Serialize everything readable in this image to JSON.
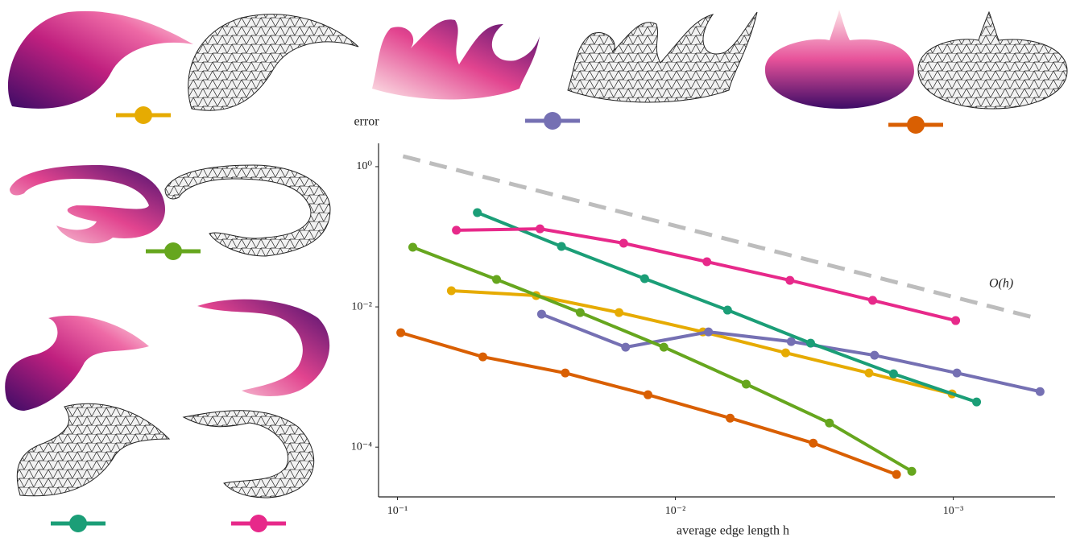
{
  "chart_data": {
    "type": "line",
    "y_label": "error",
    "x_label": "average edge length h",
    "annotation": "O(h)",
    "xlog": true,
    "ylog": true,
    "xlim": [
      0.117,
      0.00043
    ],
    "ylim": [
      2.15,
      1.95e-05
    ],
    "xticks": [
      {
        "value": 0.1,
        "label": "10⁻¹"
      },
      {
        "value": 0.01,
        "label": "10⁻²"
      },
      {
        "value": 0.001,
        "label": "10⁻³"
      }
    ],
    "yticks": [
      {
        "value": 1,
        "label": "10⁰"
      },
      {
        "value": 0.01,
        "label": "10⁻²"
      },
      {
        "value": 0.0001,
        "label": "10⁻⁴"
      }
    ],
    "reference": {
      "color": "#bdbdbd",
      "x": [
        0.0955,
        0.00049
      ],
      "values": [
        1.41,
        0.00673
      ]
    },
    "series": [
      {
        "color": "#e6ab02",
        "x": [
          0.064,
          0.0317,
          0.01595,
          0.00796,
          0.00401,
          0.00201,
          0.00101
        ],
        "values": [
          0.017,
          0.0145,
          0.0083,
          0.0044,
          0.00221,
          0.00114,
          0.000574
        ]
      },
      {
        "color": "#7570b3",
        "x": [
          0.0303,
          0.0151,
          0.0076,
          0.00383,
          0.00192,
          0.00097,
          0.000487
        ],
        "values": [
          0.00788,
          0.00266,
          0.0044,
          0.0032,
          0.00204,
          0.00114,
          0.00062
        ]
      },
      {
        "color": "#d95f02",
        "x": [
          0.0973,
          0.0493,
          0.0249,
          0.01255,
          0.00635,
          0.00319,
          0.0016
        ],
        "values": [
          0.00429,
          0.00194,
          0.00114,
          0.000558,
          0.000259,
          0.000114,
          4.07e-05
        ]
      },
      {
        "color": "#66a61e",
        "x": [
          0.0881,
          0.044,
          0.022,
          0.011,
          0.00556,
          0.00279,
          0.00141
        ],
        "values": [
          0.071,
          0.0246,
          0.0083,
          0.00266,
          0.00079,
          0.000221,
          4.52e-05
        ]
      },
      {
        "color": "#1b9e77",
        "x": [
          0.0516,
          0.0257,
          0.0129,
          0.00649,
          0.00326,
          0.00164,
          0.000824
        ],
        "values": [
          0.221,
          0.0728,
          0.0253,
          0.009,
          0.00304,
          0.00111,
          0.00044
        ]
      },
      {
        "color": "#e7298a",
        "x": [
          0.0614,
          0.0307,
          0.01535,
          0.0077,
          0.00387,
          0.00195,
          0.00098
        ],
        "values": [
          0.124,
          0.13,
          0.081,
          0.044,
          0.0239,
          0.0124,
          0.00638
        ]
      }
    ]
  }
}
